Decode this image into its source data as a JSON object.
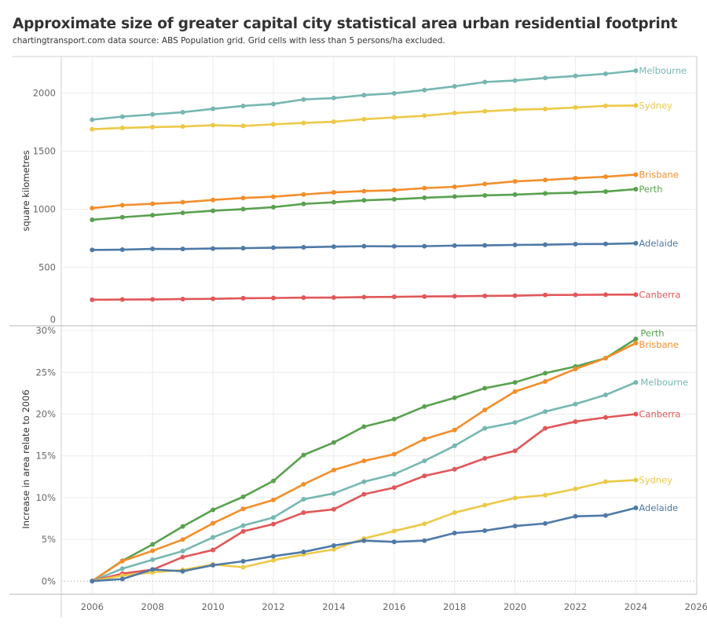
{
  "header": {
    "title": "Approximate size of greater capital city statistical area urban residential footprint",
    "subtitle": "chartingtransport.com  data source: ABS Population grid. Grid cells with less than 5 persons/ha excluded."
  },
  "chart_data": [
    {
      "type": "line",
      "title": "Approximate size of greater capital city statistical area urban residential footprint",
      "xlabel": "",
      "ylabel": "square kilometres",
      "x": [
        2006,
        2007,
        2008,
        2009,
        2010,
        2011,
        2012,
        2013,
        2014,
        2015,
        2016,
        2017,
        2018,
        2019,
        2020,
        2021,
        2022,
        2023,
        2024
      ],
      "ylim": [
        0,
        2300
      ],
      "yticks": [
        0,
        500,
        1000,
        1500,
        2000
      ],
      "ytick_labels": [
        "0",
        "500",
        "1000",
        "1500",
        "2000"
      ],
      "grid": true,
      "legend": "end-of-line labels",
      "series": [
        {
          "name": "Melbourne",
          "color": "#76B7B2",
          "values": [
            1772,
            1798,
            1817,
            1836,
            1865,
            1890,
            1907,
            1946,
            1958,
            1983,
            1999,
            2027,
            2059,
            2096,
            2109,
            2131,
            2148,
            2167,
            2194
          ]
        },
        {
          "name": "Sydney",
          "color": "#EDC948",
          "values": [
            1690,
            1701,
            1708,
            1713,
            1724,
            1718,
            1732,
            1744,
            1754,
            1776,
            1791,
            1806,
            1829,
            1844,
            1858,
            1864,
            1877,
            1891,
            1894
          ]
        },
        {
          "name": "Brisbane",
          "color": "#F28E2B",
          "values": [
            1011,
            1036,
            1048,
            1061,
            1081,
            1098,
            1109,
            1128,
            1146,
            1157,
            1165,
            1183,
            1194,
            1218,
            1241,
            1253,
            1268,
            1281,
            1299
          ]
        },
        {
          "name": "Perth",
          "color": "#59A14F",
          "values": [
            910,
            932,
            950,
            970,
            988,
            1002,
            1019,
            1047,
            1061,
            1078,
            1087,
            1100,
            1110,
            1120,
            1127,
            1137,
            1144,
            1153,
            1174
          ]
        },
        {
          "name": "Adelaide",
          "color": "#4E79A7",
          "values": [
            651,
            653,
            660,
            659,
            663,
            666,
            670,
            674,
            679,
            683,
            682,
            683,
            688,
            690,
            694,
            696,
            701,
            702,
            708
          ]
        },
        {
          "name": "Canberra",
          "color": "#E15759",
          "values": [
            222,
            224,
            225,
            228,
            230,
            235,
            237,
            240,
            241,
            245,
            247,
            250,
            252,
            255,
            257,
            263,
            264,
            266,
            266
          ]
        }
      ]
    },
    {
      "type": "line",
      "title": "",
      "xlabel": "",
      "ylabel": "Increase in area relate to 2006",
      "x": [
        2006,
        2007,
        2008,
        2009,
        2010,
        2011,
        2012,
        2013,
        2014,
        2015,
        2016,
        2017,
        2018,
        2019,
        2020,
        2021,
        2022,
        2023,
        2024
      ],
      "xlim": [
        2005,
        2026
      ],
      "xticks": [
        2006,
        2008,
        2010,
        2012,
        2014,
        2016,
        2018,
        2020,
        2022,
        2024,
        2026
      ],
      "xtick_labels": [
        "2006",
        "2008",
        "2010",
        "2012",
        "2014",
        "2016",
        "2018",
        "2020",
        "2022",
        "2024",
        "2026"
      ],
      "ylim": [
        -1.5,
        30.5
      ],
      "yticks": [
        0,
        5,
        10,
        15,
        20,
        25,
        30
      ],
      "ytick_labels": [
        "0%",
        "5%",
        "10%",
        "15%",
        "20%",
        "25%",
        "30%"
      ],
      "units": "percent",
      "grid": true,
      "reference_line": 0,
      "legend": "end-of-line labels",
      "series": [
        {
          "name": "Perth",
          "color": "#59A14F",
          "values": [
            0,
            2.44,
            4.4,
            6.55,
            8.53,
            10.1,
            12.0,
            15.1,
            16.6,
            18.5,
            19.4,
            20.9,
            21.95,
            23.1,
            23.8,
            24.9,
            25.7,
            26.7,
            29.0
          ]
        },
        {
          "name": "Brisbane",
          "color": "#F28E2B",
          "values": [
            0,
            2.4,
            3.63,
            4.98,
            6.93,
            8.65,
            9.72,
            11.6,
            13.3,
            14.4,
            15.2,
            17.0,
            18.1,
            20.5,
            22.7,
            23.9,
            25.4,
            26.7,
            28.5
          ]
        },
        {
          "name": "Melbourne",
          "color": "#76B7B2",
          "values": [
            0,
            1.5,
            2.57,
            3.6,
            5.24,
            6.65,
            7.62,
            9.8,
            10.5,
            11.9,
            12.8,
            14.4,
            16.2,
            18.3,
            19.0,
            20.3,
            21.2,
            22.3,
            23.8
          ]
        },
        {
          "name": "Canberra",
          "color": "#E15759",
          "values": [
            0,
            0.9,
            1.37,
            2.88,
            3.73,
            5.96,
            6.83,
            8.2,
            8.6,
            10.4,
            11.2,
            12.6,
            13.4,
            14.7,
            15.6,
            18.3,
            19.1,
            19.6,
            20.0
          ]
        },
        {
          "name": "Sydney",
          "color": "#EDC948",
          "values": [
            0,
            0.66,
            1.06,
            1.34,
            2.0,
            1.66,
            2.5,
            3.2,
            3.8,
            5.1,
            6.0,
            6.86,
            8.2,
            9.1,
            9.96,
            10.3,
            11.05,
            11.9,
            12.1
          ]
        },
        {
          "name": "Adelaide",
          "color": "#4E79A7",
          "values": [
            0,
            0.25,
            1.4,
            1.18,
            1.91,
            2.38,
            2.98,
            3.5,
            4.26,
            4.85,
            4.7,
            4.85,
            5.76,
            6.04,
            6.6,
            6.9,
            7.76,
            7.86,
            8.77
          ]
        }
      ]
    }
  ]
}
